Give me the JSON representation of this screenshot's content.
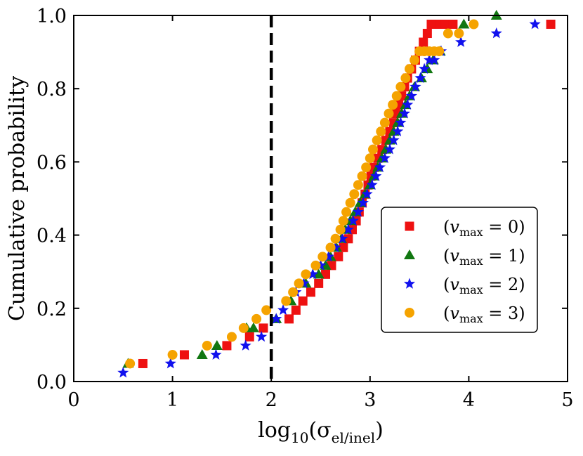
{
  "chart_data": {
    "type": "scatter",
    "title": "",
    "xlabel": "log10(σel/inel)",
    "xlabel_parts": {
      "base": "log",
      "sub": "10",
      "open": "(σ",
      "sigma_sub": "el/inel",
      "close": ")"
    },
    "ylabel": "Cumulative probability",
    "xlim": [
      0,
      5
    ],
    "ylim": [
      0,
      1
    ],
    "xticks": [
      0,
      1,
      2,
      3,
      4,
      5
    ],
    "xtick_labels": [
      "0",
      "1",
      "2",
      "3",
      "4",
      "5"
    ],
    "yticks": [
      0,
      0.2,
      0.4,
      0.6,
      0.8,
      1.0
    ],
    "ytick_labels": [
      "0.0",
      "0.2",
      "0.4",
      "0.6",
      "0.8",
      "1.0"
    ],
    "vline": {
      "x": 2.0,
      "style": "dashed",
      "color": "#000000"
    },
    "legend_position": "center-right",
    "series": [
      {
        "name": "(vmax = 0)",
        "vmax": "0",
        "marker": "square",
        "color": "#ee1111",
        "x": [
          0.7,
          1.12,
          1.55,
          1.78,
          1.92,
          2.18,
          2.25,
          2.32,
          2.4,
          2.48,
          2.55,
          2.61,
          2.68,
          2.73,
          2.78,
          2.82,
          2.86,
          2.89,
          2.92,
          2.95,
          2.98,
          3.01,
          3.04,
          3.08,
          3.12,
          3.16,
          3.2,
          3.24,
          3.26,
          3.29,
          3.32,
          3.35,
          3.38,
          3.42,
          3.46,
          3.5,
          3.54,
          3.58,
          3.62,
          3.66,
          3.71,
          3.76,
          3.84,
          4.83
        ],
        "y": [
          0.049,
          0.073,
          0.098,
          0.122,
          0.146,
          0.171,
          0.195,
          0.22,
          0.244,
          0.268,
          0.293,
          0.317,
          0.341,
          0.366,
          0.39,
          0.415,
          0.439,
          0.463,
          0.488,
          0.512,
          0.537,
          0.561,
          0.585,
          0.61,
          0.634,
          0.659,
          0.683,
          0.707,
          0.732,
          0.756,
          0.78,
          0.805,
          0.829,
          0.854,
          0.878,
          0.902,
          0.927,
          0.951,
          0.976,
          0.976,
          0.976,
          0.976,
          0.976,
          0.976
        ]
      },
      {
        "name": "(vmax = 1)",
        "vmax": "1",
        "marker": "triangle",
        "color": "#117711",
        "x": [
          0.55,
          1.3,
          1.45,
          1.75,
          1.82,
          2.05,
          2.2,
          2.35,
          2.48,
          2.55,
          2.6,
          2.66,
          2.71,
          2.75,
          2.8,
          2.85,
          2.9,
          2.95,
          3.0,
          3.04,
          3.08,
          3.12,
          3.16,
          3.2,
          3.24,
          3.28,
          3.32,
          3.36,
          3.4,
          3.45,
          3.52,
          3.58,
          3.64,
          3.71,
          3.95,
          4.28
        ],
        "y": [
          0.049,
          0.073,
          0.098,
          0.146,
          0.146,
          0.171,
          0.22,
          0.268,
          0.293,
          0.317,
          0.341,
          0.366,
          0.39,
          0.415,
          0.439,
          0.463,
          0.488,
          0.512,
          0.537,
          0.561,
          0.585,
          0.61,
          0.634,
          0.659,
          0.683,
          0.707,
          0.732,
          0.756,
          0.78,
          0.805,
          0.829,
          0.854,
          0.878,
          0.902,
          0.976,
          1.0
        ]
      },
      {
        "name": "(vmax = 2)",
        "vmax": "2",
        "marker": "star",
        "color": "#1111ee",
        "x": [
          0.5,
          0.98,
          1.44,
          1.74,
          1.9,
          2.05,
          2.12,
          2.25,
          2.33,
          2.42,
          2.5,
          2.58,
          2.65,
          2.72,
          2.78,
          2.83,
          2.88,
          2.93,
          2.97,
          3.02,
          3.06,
          3.1,
          3.15,
          3.2,
          3.24,
          3.28,
          3.31,
          3.35,
          3.38,
          3.42,
          3.46,
          3.51,
          3.55,
          3.6,
          3.65,
          3.72,
          3.92,
          4.28,
          4.67
        ],
        "y": [
          0.024,
          0.049,
          0.073,
          0.098,
          0.122,
          0.171,
          0.195,
          0.244,
          0.268,
          0.293,
          0.317,
          0.341,
          0.366,
          0.39,
          0.415,
          0.439,
          0.463,
          0.488,
          0.512,
          0.537,
          0.561,
          0.585,
          0.61,
          0.634,
          0.659,
          0.683,
          0.707,
          0.732,
          0.756,
          0.78,
          0.805,
          0.829,
          0.854,
          0.878,
          0.878,
          0.902,
          0.927,
          0.951,
          0.976
        ]
      },
      {
        "name": "(vmax = 3)",
        "vmax": "3",
        "marker": "circle",
        "color": "#f5a300",
        "x": [
          0.57,
          1.0,
          1.35,
          1.6,
          1.72,
          1.85,
          1.95,
          2.15,
          2.22,
          2.28,
          2.35,
          2.45,
          2.52,
          2.6,
          2.65,
          2.7,
          2.73,
          2.76,
          2.8,
          2.84,
          2.88,
          2.92,
          2.96,
          3.0,
          3.03,
          3.07,
          3.11,
          3.15,
          3.19,
          3.23,
          3.27,
          3.31,
          3.36,
          3.4,
          3.45,
          3.5,
          3.55,
          3.6,
          3.65,
          3.7,
          3.79,
          3.9,
          4.05
        ],
        "y": [
          0.049,
          0.073,
          0.098,
          0.122,
          0.146,
          0.171,
          0.195,
          0.22,
          0.244,
          0.268,
          0.293,
          0.317,
          0.341,
          0.366,
          0.39,
          0.415,
          0.439,
          0.463,
          0.488,
          0.512,
          0.537,
          0.561,
          0.585,
          0.61,
          0.634,
          0.659,
          0.683,
          0.707,
          0.732,
          0.756,
          0.78,
          0.805,
          0.829,
          0.854,
          0.878,
          0.902,
          0.902,
          0.902,
          0.902,
          0.902,
          0.951,
          0.951,
          0.976
        ]
      }
    ]
  }
}
